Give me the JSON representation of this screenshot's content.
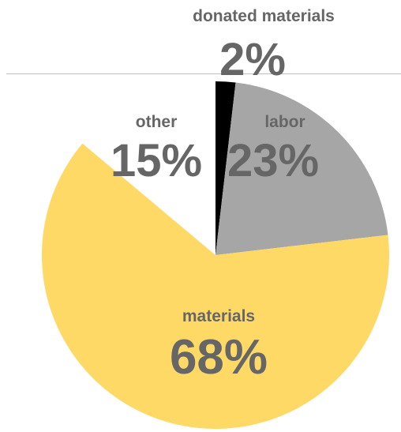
{
  "chart_data": {
    "type": "pie",
    "title": "",
    "slices": [
      {
        "label": "donated materials",
        "value": 2,
        "value_label": "2%",
        "color": "#000000"
      },
      {
        "label": "labor",
        "value": 23,
        "value_label": "23%",
        "color": "#a6a6a6"
      },
      {
        "label": "materials",
        "value": 68,
        "value_label": "68%",
        "color": "#ffd966"
      },
      {
        "label": "other",
        "value": 15,
        "value_label": "15%",
        "color": "#ffffff"
      }
    ],
    "start_angle_deg": 0,
    "direction": "clockwise",
    "legend": "none",
    "label_color": "#666666"
  }
}
